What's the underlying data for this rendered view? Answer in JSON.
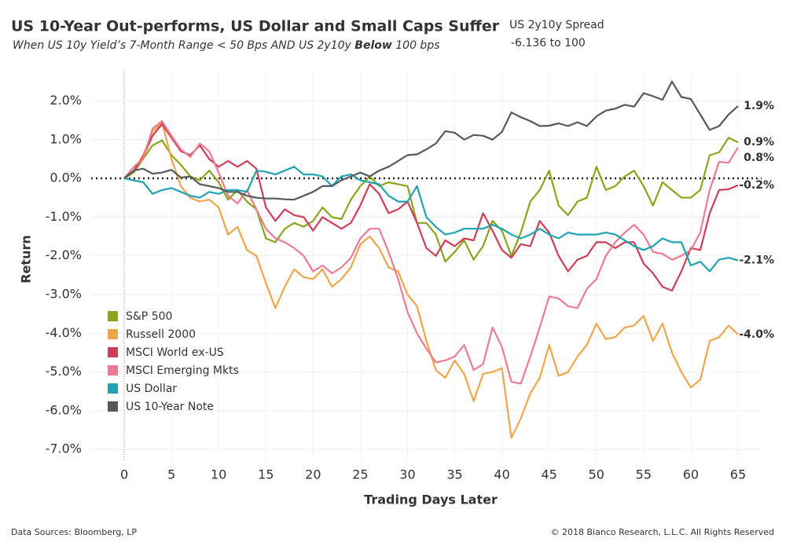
{
  "chart_data": {
    "type": "line",
    "title": "US 10-Year Out-performs, US Dollar and Small Caps Suffer",
    "subtitle": [
      "When US 10y Yield’s 7-Month Range < 50 Bps AND US 2y10y ",
      "Below",
      " 100 bps"
    ],
    "filter_title": "US 2y10y Spread",
    "filter_range": "-6.136 to 100",
    "x_label": "Trading Days Later",
    "y_label": "Return",
    "source": "Data Sources: Bloomberg, LP",
    "copyright": "© 2018 Bianco Research, L.L.C. All Rights Reserved",
    "grid": true,
    "legend": "lower-left",
    "xlim": [
      -3.5,
      67.5
    ],
    "xticks": [
      0,
      5,
      10,
      15,
      20,
      25,
      30,
      35,
      40,
      45,
      50,
      55,
      60,
      65
    ],
    "ylim": [
      -7.3,
      2.8
    ],
    "yticks": [
      {
        "value": 2,
        "label": "2.0%"
      },
      {
        "value": 1,
        "label": "1.0%"
      },
      {
        "value": 0,
        "label": "0.0%"
      },
      {
        "value": -1,
        "label": "-1.0%"
      },
      {
        "value": -2,
        "label": "-2.0%"
      },
      {
        "value": -3,
        "label": "-3.0%"
      },
      {
        "value": -4,
        "label": "-4.0%"
      },
      {
        "value": -5,
        "label": "-5.0%"
      },
      {
        "value": -6,
        "label": "-6.0%"
      },
      {
        "value": -7,
        "label": "-7.0%"
      }
    ],
    "x": [
      0,
      1,
      2,
      3,
      4,
      5,
      6,
      7,
      8,
      9,
      10,
      11,
      12,
      13,
      14,
      15,
      16,
      17,
      18,
      19,
      20,
      21,
      22,
      23,
      24,
      25,
      26,
      27,
      28,
      29,
      30,
      31,
      32,
      33,
      34,
      35,
      36,
      37,
      38,
      39,
      40,
      41,
      42,
      43,
      44,
      45,
      46,
      47,
      48,
      49,
      50,
      51,
      52,
      53,
      54,
      55,
      56,
      57,
      58,
      59,
      60,
      61,
      62,
      63,
      64,
      65
    ],
    "series": [
      {
        "name": "S&P 500",
        "color": "#8aa51a",
        "values": [
          0,
          0.15,
          0.5,
          0.85,
          0.98,
          0.6,
          0.35,
          0.05,
          -0.05,
          0.2,
          -0.1,
          -0.55,
          -0.3,
          -0.6,
          -0.8,
          -1.55,
          -1.65,
          -1.3,
          -1.15,
          -1.25,
          -1.1,
          -0.75,
          -1.0,
          -1.05,
          -0.55,
          -0.2,
          0.05,
          -0.2,
          -0.1,
          -0.15,
          -0.2,
          -1.15,
          -1.15,
          -1.45,
          -2.15,
          -1.9,
          -1.6,
          -2.1,
          -1.75,
          -1.1,
          -1.35,
          -2.0,
          -1.4,
          -0.6,
          -0.3,
          0.2,
          -0.7,
          -0.95,
          -0.6,
          -0.5,
          0.3,
          -0.3,
          -0.2,
          0.05,
          0.2,
          -0.2,
          -0.7,
          -0.1,
          -0.3,
          -0.5,
          -0.5,
          -0.3,
          0.6,
          0.67,
          1.05,
          0.93
        ],
        "value_labels": [
          null,
          null,
          null,
          null,
          null,
          null,
          null,
          null,
          null,
          null,
          null,
          null,
          null,
          null,
          null,
          null,
          null,
          null,
          null,
          null,
          null,
          null,
          null,
          null,
          null,
          null,
          null,
          null,
          null,
          null,
          null,
          null,
          null,
          null,
          null,
          null,
          null,
          null,
          null,
          null,
          null,
          null,
          null,
          null,
          null,
          null,
          null,
          null,
          null,
          null,
          null,
          null,
          null,
          null,
          null,
          null,
          null,
          null,
          null,
          null,
          null,
          null,
          null,
          null,
          null,
          "0.9%"
        ]
      },
      {
        "name": "Russell 2000",
        "color": "#f0a54a",
        "values": [
          0,
          0.2,
          0.6,
          1.2,
          1.45,
          0.5,
          -0.2,
          -0.5,
          -0.6,
          -0.55,
          -0.75,
          -1.45,
          -1.25,
          -1.85,
          -2.0,
          -2.7,
          -3.35,
          -2.8,
          -2.35,
          -2.55,
          -2.6,
          -2.35,
          -2.8,
          -2.6,
          -2.3,
          -1.7,
          -1.5,
          -1.8,
          -2.3,
          -2.4,
          -3.0,
          -3.3,
          -4.2,
          -4.95,
          -5.15,
          -4.7,
          -5.05,
          -5.75,
          -5.05,
          -5.0,
          -4.9,
          -6.7,
          -6.2,
          -5.55,
          -5.15,
          -4.3,
          -5.1,
          -5.0,
          -4.6,
          -4.3,
          -3.75,
          -4.15,
          -4.1,
          -3.85,
          -3.8,
          -3.55,
          -4.2,
          -3.75,
          -4.5,
          -5.0,
          -5.4,
          -5.2,
          -4.2,
          -4.1,
          -3.8,
          -4.03
        ],
        "value_labels": [
          null,
          null,
          null,
          null,
          null,
          null,
          null,
          null,
          null,
          null,
          null,
          null,
          null,
          null,
          null,
          null,
          null,
          null,
          null,
          null,
          null,
          null,
          null,
          null,
          null,
          null,
          null,
          null,
          null,
          null,
          null,
          null,
          null,
          null,
          null,
          null,
          null,
          null,
          null,
          null,
          null,
          null,
          null,
          null,
          null,
          null,
          null,
          null,
          null,
          null,
          null,
          null,
          null,
          null,
          null,
          null,
          null,
          null,
          null,
          null,
          null,
          null,
          null,
          null,
          null,
          "-4.0%"
        ]
      },
      {
        "name": "MSCI World ex-US",
        "color": "#cf3d56",
        "values": [
          0,
          0.2,
          0.55,
          1.1,
          1.4,
          1.05,
          0.7,
          0.6,
          0.85,
          0.5,
          0.3,
          0.45,
          0.3,
          0.45,
          0.25,
          -0.75,
          -1.1,
          -0.8,
          -0.95,
          -1.0,
          -1.35,
          -1.0,
          -1.15,
          -1.3,
          -1.15,
          -0.7,
          -0.15,
          -0.4,
          -0.9,
          -0.8,
          -0.6,
          -1.15,
          -1.8,
          -2.0,
          -1.6,
          -1.75,
          -1.55,
          -1.6,
          -0.9,
          -1.35,
          -1.85,
          -2.05,
          -1.7,
          -1.75,
          -1.1,
          -1.4,
          -2.0,
          -2.4,
          -2.1,
          -2.0,
          -1.65,
          -1.65,
          -1.8,
          -1.65,
          -1.65,
          -2.2,
          -2.45,
          -2.8,
          -2.9,
          -2.4,
          -1.8,
          -1.85,
          -0.9,
          -0.3,
          -0.28,
          -0.18
        ],
        "value_labels": [
          null,
          null,
          null,
          null,
          null,
          null,
          null,
          null,
          null,
          null,
          null,
          null,
          null,
          null,
          null,
          null,
          null,
          null,
          null,
          null,
          null,
          null,
          null,
          null,
          null,
          null,
          null,
          null,
          null,
          null,
          null,
          null,
          null,
          null,
          null,
          null,
          null,
          null,
          null,
          null,
          null,
          null,
          null,
          null,
          null,
          null,
          null,
          null,
          null,
          null,
          null,
          null,
          null,
          null,
          null,
          null,
          null,
          null,
          null,
          null,
          null,
          null,
          null,
          null,
          null,
          "-0.2%"
        ]
      },
      {
        "name": "MSCI Emerging Mkts",
        "color": "#ef7a93",
        "values": [
          0,
          0.3,
          0.5,
          1.28,
          1.48,
          1.1,
          0.75,
          0.55,
          0.9,
          0.7,
          0.15,
          -0.45,
          -0.65,
          -0.3,
          -0.8,
          -1.3,
          -1.55,
          -1.65,
          -1.8,
          -2.0,
          -2.4,
          -2.25,
          -2.45,
          -2.3,
          -2.05,
          -1.55,
          -1.3,
          -1.3,
          -1.9,
          -2.6,
          -3.45,
          -4.0,
          -4.4,
          -4.75,
          -4.7,
          -4.6,
          -4.3,
          -4.95,
          -4.8,
          -3.85,
          -4.35,
          -5.25,
          -5.3,
          -4.6,
          -3.85,
          -3.05,
          -3.1,
          -3.3,
          -3.35,
          -2.85,
          -2.6,
          -2.0,
          -1.65,
          -1.4,
          -1.2,
          -1.45,
          -1.9,
          -1.95,
          -2.1,
          -2.0,
          -1.85,
          -1.4,
          -0.3,
          0.43,
          0.4,
          0.8
        ],
        "value_labels": [
          null,
          null,
          null,
          null,
          null,
          null,
          null,
          null,
          null,
          null,
          null,
          null,
          null,
          null,
          null,
          null,
          null,
          null,
          null,
          null,
          null,
          null,
          null,
          null,
          null,
          null,
          null,
          null,
          null,
          null,
          null,
          null,
          null,
          null,
          null,
          null,
          null,
          null,
          null,
          null,
          null,
          null,
          null,
          null,
          null,
          null,
          null,
          null,
          null,
          null,
          null,
          null,
          null,
          null,
          null,
          null,
          null,
          null,
          null,
          null,
          null,
          null,
          null,
          null,
          null,
          "0.8%"
        ]
      },
      {
        "name": "US Dollar",
        "color": "#1fa3b3",
        "values": [
          0,
          -0.05,
          -0.1,
          -0.4,
          -0.3,
          -0.25,
          -0.35,
          -0.45,
          -0.5,
          -0.35,
          -0.4,
          -0.3,
          -0.3,
          -0.35,
          0.2,
          0.17,
          0.1,
          0.2,
          0.3,
          0.1,
          0.1,
          0.05,
          -0.2,
          0.05,
          0.1,
          -0.05,
          -0.1,
          -0.15,
          -0.45,
          -0.6,
          -0.6,
          -0.2,
          -1.0,
          -1.25,
          -1.45,
          -1.4,
          -1.3,
          -1.3,
          -1.3,
          -1.2,
          -1.3,
          -1.45,
          -1.55,
          -1.45,
          -1.3,
          -1.45,
          -1.55,
          -1.4,
          -1.45,
          -1.45,
          -1.45,
          -1.4,
          -1.45,
          -1.6,
          -1.75,
          -1.85,
          -1.75,
          -1.55,
          -1.65,
          -1.65,
          -2.25,
          -2.15,
          -2.4,
          -2.1,
          -2.05,
          -2.12
        ],
        "value_labels": [
          null,
          null,
          null,
          null,
          null,
          null,
          null,
          null,
          null,
          null,
          null,
          null,
          null,
          null,
          null,
          null,
          null,
          null,
          null,
          null,
          null,
          null,
          null,
          null,
          null,
          null,
          null,
          null,
          null,
          null,
          null,
          null,
          null,
          null,
          null,
          null,
          null,
          null,
          null,
          null,
          null,
          null,
          null,
          null,
          null,
          null,
          null,
          null,
          null,
          null,
          null,
          null,
          null,
          null,
          null,
          null,
          null,
          null,
          null,
          null,
          null,
          null,
          null,
          null,
          null,
          "-2.1%"
        ]
      },
      {
        "name": "US 10-Year Note",
        "color": "#555a60",
        "values": [
          0,
          0.2,
          0.25,
          0.12,
          0.15,
          0.22,
          0.02,
          0.05,
          -0.15,
          -0.2,
          -0.25,
          -0.35,
          -0.35,
          -0.45,
          -0.5,
          -0.52,
          -0.52,
          -0.54,
          -0.55,
          -0.45,
          -0.35,
          -0.2,
          -0.2,
          -0.05,
          0.05,
          0.15,
          0.05,
          0.2,
          0.3,
          0.45,
          0.6,
          0.62,
          0.75,
          0.9,
          1.22,
          1.18,
          1.0,
          1.12,
          1.1,
          1.0,
          1.2,
          1.7,
          1.58,
          1.48,
          1.35,
          1.36,
          1.42,
          1.35,
          1.45,
          1.35,
          1.6,
          1.75,
          1.8,
          1.9,
          1.85,
          2.2,
          2.12,
          2.03,
          2.5,
          2.1,
          2.05,
          1.65,
          1.25,
          1.35,
          1.65,
          1.87
        ],
        "value_labels": [
          null,
          null,
          null,
          null,
          null,
          null,
          null,
          null,
          null,
          null,
          null,
          null,
          null,
          null,
          null,
          null,
          null,
          null,
          null,
          null,
          null,
          null,
          null,
          null,
          null,
          null,
          null,
          null,
          null,
          null,
          null,
          null,
          null,
          null,
          null,
          null,
          null,
          null,
          null,
          null,
          null,
          null,
          null,
          null,
          null,
          null,
          null,
          null,
          null,
          null,
          null,
          null,
          null,
          null,
          null,
          null,
          null,
          null,
          null,
          null,
          null,
          null,
          null,
          null,
          null,
          "1.9%"
        ]
      }
    ]
  }
}
